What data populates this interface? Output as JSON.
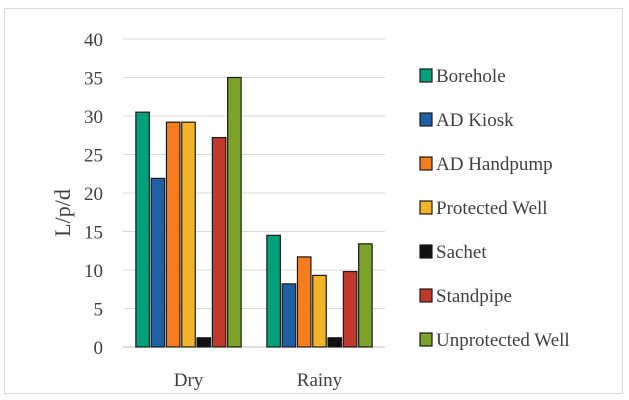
{
  "chart_data": {
    "type": "bar",
    "title": "",
    "xlabel": "",
    "ylabel": "L/p/d",
    "ylim": [
      0,
      40
    ],
    "yticks": [
      0,
      5,
      10,
      15,
      20,
      25,
      30,
      35,
      40
    ],
    "grid": true,
    "legend_position": "right",
    "categories": [
      "Dry",
      "Rainy"
    ],
    "series": [
      {
        "name": "Borehole",
        "color": "#00a07a",
        "values": [
          30.5,
          14.5
        ]
      },
      {
        "name": "AD Kiosk",
        "color": "#1f5fa3",
        "values": [
          21.9,
          8.2
        ]
      },
      {
        "name": "AD Handpump",
        "color": "#f57c1f",
        "values": [
          29.2,
          11.7
        ]
      },
      {
        "name": "Protected Well",
        "color": "#f2b52a",
        "values": [
          29.2,
          9.3
        ]
      },
      {
        "name": "Sachet",
        "color": "#111111",
        "values": [
          1.2,
          1.2
        ]
      },
      {
        "name": "Standpipe",
        "color": "#c0392b",
        "values": [
          27.2,
          9.8
        ]
      },
      {
        "name": "Unprotected Well",
        "color": "#7da22a",
        "values": [
          35.0,
          13.4
        ]
      }
    ]
  }
}
